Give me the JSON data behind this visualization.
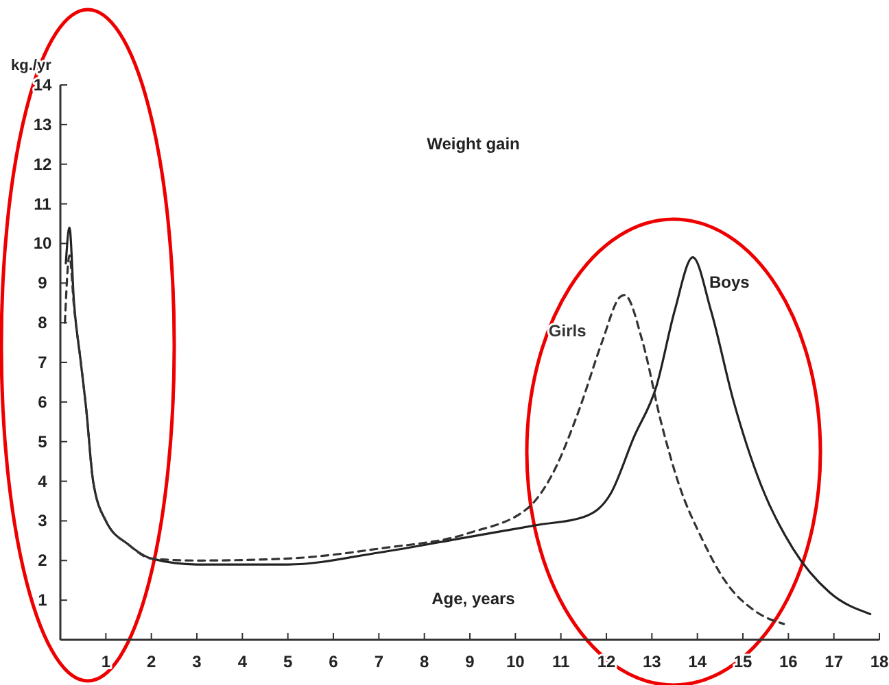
{
  "chart_data": {
    "type": "line",
    "title": "Weight gain",
    "xlabel": "Age, years",
    "ylabel": "kg./yr",
    "xlim": [
      0,
      18
    ],
    "ylim": [
      0,
      14
    ],
    "xticks": [
      1,
      2,
      3,
      4,
      5,
      6,
      7,
      8,
      9,
      10,
      11,
      12,
      13,
      14,
      15,
      16,
      17,
      18
    ],
    "yticks": [
      {
        "value": 0,
        "label": null
      },
      1,
      2,
      3,
      4,
      5,
      6,
      7,
      8,
      9,
      10,
      11,
      12,
      13,
      14
    ],
    "grid": false,
    "marker": "none",
    "series": [
      {
        "name": "Boys",
        "color": "#222222",
        "line_style": "solid",
        "x": [
          0.12,
          0.2,
          0.3,
          0.45,
          0.57,
          0.72,
          1,
          1.5,
          2,
          3,
          5,
          7,
          9,
          10.5,
          11.5,
          12.1,
          12.6,
          13.1,
          13.5,
          13.9,
          14.3,
          14.8,
          15.4,
          16.1,
          16.9,
          17.8
        ],
        "values": [
          9.5,
          10.4,
          8.5,
          7,
          5.8,
          4,
          3,
          2.4,
          2.05,
          1.9,
          1.9,
          2.2,
          2.6,
          2.9,
          3.1,
          3.7,
          5.1,
          6.4,
          8.3,
          9.65,
          8.3,
          6,
          3.9,
          2.3,
          1.2,
          0.65
        ]
      },
      {
        "name": "Girls",
        "color": "#333333",
        "line_style": "dashed",
        "x": [
          0.1,
          0.2,
          0.3,
          0.45,
          0.57,
          0.72,
          1,
          1.5,
          2,
          3,
          5,
          7,
          9,
          10.3,
          10.8,
          11.4,
          11.9,
          12.3,
          12.4,
          12.8,
          13.2,
          13.6,
          14.1,
          14.6,
          15.3,
          15.9
        ],
        "values": [
          8,
          9.7,
          8.4,
          7,
          5.8,
          4,
          3,
          2.4,
          2.05,
          2,
          2.05,
          2.3,
          2.7,
          3.35,
          4.15,
          5.8,
          7.5,
          8.65,
          8.7,
          7.5,
          5.5,
          3.9,
          2.55,
          1.5,
          0.7,
          0.4
        ]
      }
    ]
  }
}
